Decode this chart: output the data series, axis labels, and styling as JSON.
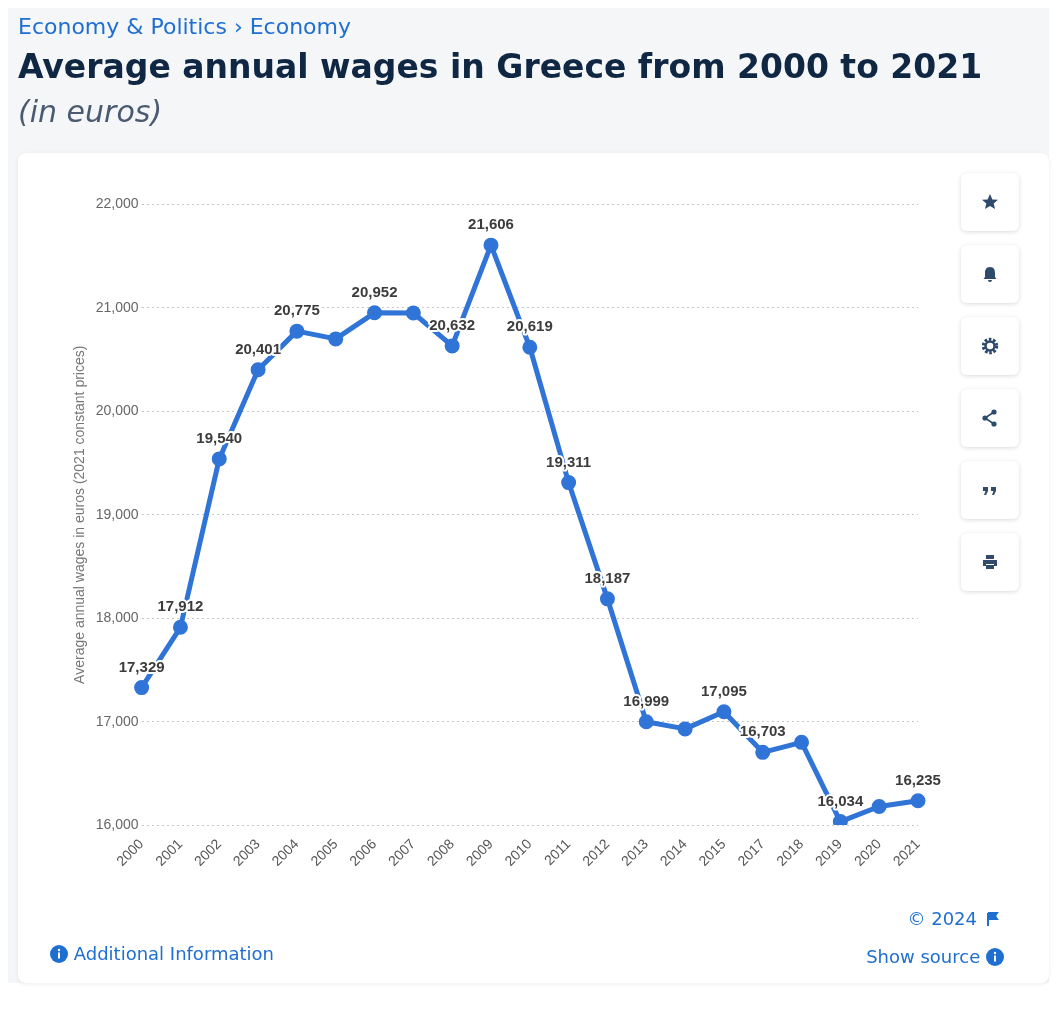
{
  "chart_data": {
    "type": "line",
    "title": "Average annual wages in Greece from 2000 to 2021",
    "subtitle": "(in euros)",
    "ylabel": "Average annual wages in euros (2021 constant prices)",
    "annotations": [
      "Economy & Politics › Economy",
      "© 2024",
      "Additional Information",
      "Show source"
    ],
    "categories": [
      "2000",
      "2001",
      "2002",
      "2003",
      "2004",
      "2005",
      "2006",
      "2007",
      "2008",
      "2009",
      "2010",
      "2011",
      "2012",
      "2013",
      "2014",
      "2015",
      "2017",
      "2018",
      "2019",
      "2020",
      "2021"
    ],
    "series": [
      {
        "color": "#2f74d6",
        "values": [
          17329,
          17912,
          19540,
          20401,
          20775,
          20700,
          20952,
          20950,
          20632,
          21606,
          20619,
          19311,
          18187,
          16999,
          16930,
          17095,
          16703,
          16800,
          16034,
          16180,
          16235
        ],
        "value_labels": [
          "17,329",
          "17,912",
          "19,540",
          "20,401",
          "20,775",
          null,
          "20,952",
          null,
          "20,632",
          "21,606",
          "20,619",
          "19,311",
          "18,187",
          "16,999",
          null,
          "17,095",
          "16,703",
          null,
          "16,034",
          null,
          "16,235"
        ]
      }
    ],
    "ylim": [
      16000,
      22000
    ],
    "yticks": [
      {
        "value": 16000,
        "label": "16,000"
      },
      {
        "value": 17000,
        "label": "17,000"
      },
      {
        "value": 18000,
        "label": "18,000"
      },
      {
        "value": 19000,
        "label": "19,000"
      },
      {
        "value": 20000,
        "label": "20,000"
      },
      {
        "value": 21000,
        "label": "21,000"
      },
      {
        "value": 22000,
        "label": "22,000"
      }
    ],
    "grid": "y",
    "legend": false,
    "marker": "circle",
    "line_style": "solid"
  }
}
